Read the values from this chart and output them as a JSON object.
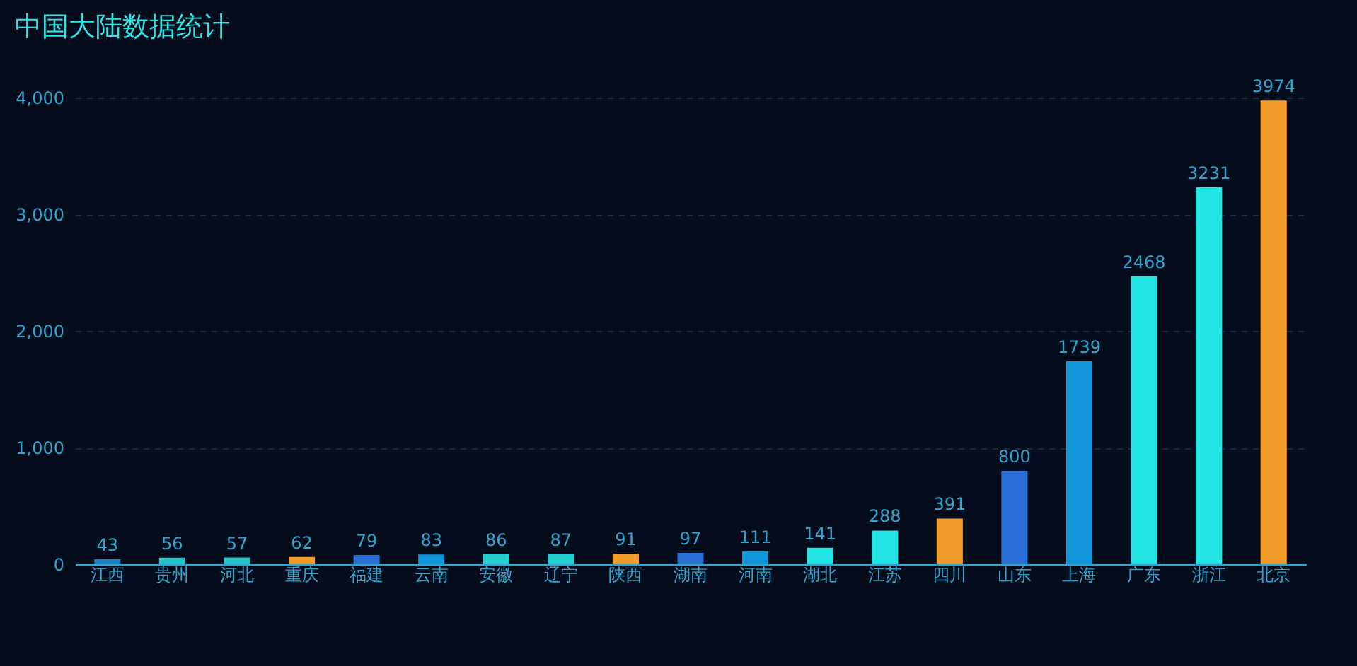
{
  "chart_data": {
    "type": "bar",
    "title": "中国大陆数据统计",
    "categories": [
      "江西",
      "贵州",
      "河北",
      "重庆",
      "福建",
      "云南",
      "安徽",
      "辽宁",
      "陕西",
      "湖南",
      "河南",
      "湖北",
      "江苏",
      "四川",
      "山东",
      "上海",
      "广东",
      "浙江",
      "北京"
    ],
    "values": [
      43,
      56,
      57,
      62,
      79,
      83,
      86,
      87,
      91,
      97,
      111,
      141,
      288,
      391,
      800,
      1739,
      2468,
      3231,
      3974
    ],
    "colors": [
      "#1a7fc0",
      "#22c4c4",
      "#22c4c4",
      "#f39c2a",
      "#2a6fd6",
      "#1296db",
      "#22d0d0",
      "#22d0d0",
      "#f39c2a",
      "#2a6fd6",
      "#1296db",
      "#22e6e6",
      "#22e6e6",
      "#f39c2a",
      "#2a6fd6",
      "#1296db",
      "#22e6e6",
      "#22e6e6",
      "#f39c2a"
    ],
    "ylim": [
      0,
      4000
    ],
    "yticks": [
      0,
      {
        "value": 1000,
        "label": "1,000"
      },
      {
        "value": 2000,
        "label": "2,000"
      },
      {
        "value": 3000,
        "label": "3,000"
      },
      {
        "value": 4000,
        "label": "4,000"
      }
    ],
    "grid": "y",
    "data_labels": true
  }
}
